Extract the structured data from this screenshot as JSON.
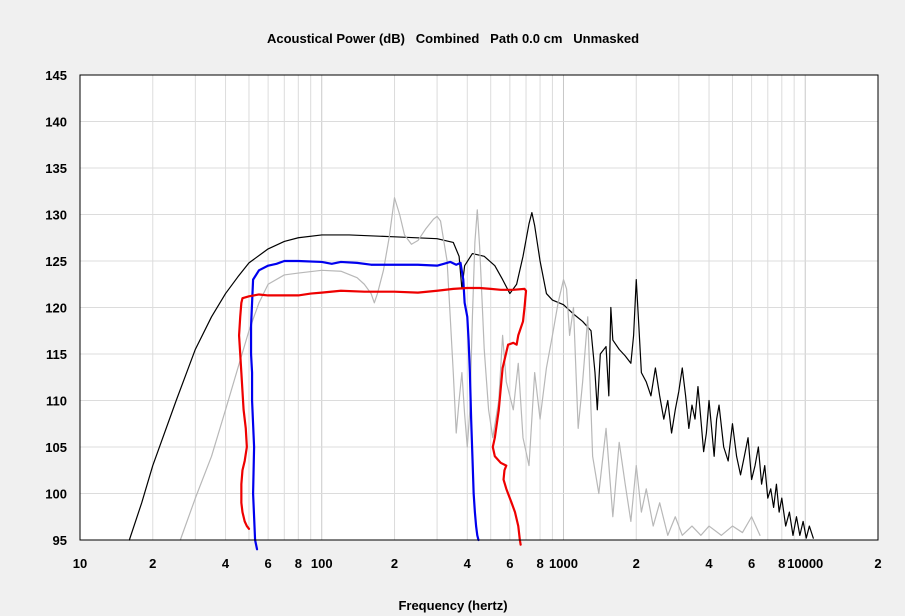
{
  "chart_data": {
    "type": "line",
    "title": "Acoustical Power (dB)   Combined   Path 0.0 cm   Unmasked",
    "xlabel": "Frequency (hertz)",
    "ylabel": "",
    "x_scale": "log",
    "xlim": [
      10,
      20000
    ],
    "ylim": [
      95,
      145
    ],
    "grid": true,
    "legend": "none",
    "y_ticks": [
      "145",
      "140",
      "135",
      "130",
      "125",
      "120",
      "115",
      "110",
      "105",
      "100",
      "95"
    ],
    "x_ticks": [
      {
        "value": 10,
        "label": "10"
      },
      {
        "value": 20,
        "label": "2"
      },
      {
        "value": 40,
        "label": "4"
      },
      {
        "value": 60,
        "label": "6"
      },
      {
        "value": 80,
        "label": "8"
      },
      {
        "value": 100,
        "label": "100"
      },
      {
        "value": 200,
        "label": "2"
      },
      {
        "value": 400,
        "label": "4"
      },
      {
        "value": 600,
        "label": "6"
      },
      {
        "value": 800,
        "label": "8"
      },
      {
        "value": 1000,
        "label": "1000"
      },
      {
        "value": 2000,
        "label": "2"
      },
      {
        "value": 4000,
        "label": "4"
      },
      {
        "value": 6000,
        "label": "6"
      },
      {
        "value": 8000,
        "label": "8"
      },
      {
        "value": 10000,
        "label": "10000"
      },
      {
        "value": 20000,
        "label": "2"
      }
    ],
    "series": [
      {
        "color": "#000000",
        "points": [
          [
            16,
            95
          ],
          [
            18,
            99
          ],
          [
            20,
            103
          ],
          [
            25,
            110
          ],
          [
            30,
            115.5
          ],
          [
            35,
            119
          ],
          [
            40,
            121.5
          ],
          [
            45,
            123.3
          ],
          [
            50,
            124.8
          ],
          [
            60,
            126.3
          ],
          [
            70,
            127.1
          ],
          [
            80,
            127.5
          ],
          [
            100,
            127.8
          ],
          [
            130,
            127.8
          ],
          [
            200,
            127.6
          ],
          [
            300,
            127.4
          ],
          [
            350,
            127
          ],
          [
            370,
            125.5
          ],
          [
            380,
            122
          ],
          [
            390,
            124.5
          ],
          [
            420,
            125.8
          ],
          [
            470,
            125.5
          ],
          [
            520,
            124.5
          ],
          [
            560,
            123
          ],
          [
            600,
            121.5
          ],
          [
            640,
            122.5
          ],
          [
            680,
            125.5
          ],
          [
            720,
            129
          ],
          [
            740,
            130.2
          ],
          [
            760,
            128.8
          ],
          [
            800,
            125
          ],
          [
            850,
            121.5
          ],
          [
            900,
            120.8
          ],
          [
            1000,
            120.3
          ],
          [
            1100,
            119.3
          ],
          [
            1200,
            118.5
          ],
          [
            1300,
            117.5
          ],
          [
            1350,
            113
          ],
          [
            1380,
            109
          ],
          [
            1420,
            115
          ],
          [
            1500,
            115.8
          ],
          [
            1540,
            110.5
          ],
          [
            1570,
            120
          ],
          [
            1600,
            116.5
          ],
          [
            1700,
            115.5
          ],
          [
            1800,
            114.8
          ],
          [
            1900,
            114
          ],
          [
            1950,
            117
          ],
          [
            2000,
            123
          ],
          [
            2050,
            118
          ],
          [
            2100,
            113
          ],
          [
            2200,
            112
          ],
          [
            2300,
            110.5
          ],
          [
            2400,
            113.5
          ],
          [
            2500,
            110.5
          ],
          [
            2600,
            108
          ],
          [
            2700,
            110
          ],
          [
            2800,
            106.5
          ],
          [
            2900,
            109
          ],
          [
            3000,
            111
          ],
          [
            3100,
            113.5
          ],
          [
            3200,
            110.5
          ],
          [
            3300,
            107
          ],
          [
            3400,
            109.5
          ],
          [
            3500,
            108
          ],
          [
            3600,
            111.5
          ],
          [
            3700,
            108
          ],
          [
            3800,
            104.5
          ],
          [
            3900,
            106.5
          ],
          [
            4000,
            110
          ],
          [
            4100,
            107
          ],
          [
            4200,
            104
          ],
          [
            4300,
            108
          ],
          [
            4400,
            109.5
          ],
          [
            4600,
            105
          ],
          [
            4800,
            103.5
          ],
          [
            5000,
            107.5
          ],
          [
            5200,
            104
          ],
          [
            5400,
            102
          ],
          [
            5600,
            104
          ],
          [
            5800,
            106
          ],
          [
            6000,
            101.5
          ],
          [
            6200,
            103
          ],
          [
            6400,
            105
          ],
          [
            6600,
            101
          ],
          [
            6800,
            103
          ],
          [
            7000,
            99.5
          ],
          [
            7200,
            100.5
          ],
          [
            7400,
            98.5
          ],
          [
            7600,
            101
          ],
          [
            7800,
            98
          ],
          [
            8000,
            99.5
          ],
          [
            8300,
            96.5
          ],
          [
            8600,
            98
          ],
          [
            8900,
            95.5
          ],
          [
            9200,
            97.5
          ],
          [
            9500,
            95.5
          ],
          [
            9800,
            97
          ],
          [
            10100,
            95.2
          ],
          [
            10400,
            96.5
          ],
          [
            10800,
            95.2
          ]
        ]
      },
      {
        "color": "#b8b8b8",
        "points": [
          [
            26,
            95
          ],
          [
            30,
            99.5
          ],
          [
            35,
            104
          ],
          [
            40,
            109
          ],
          [
            45,
            113.5
          ],
          [
            50,
            117.5
          ],
          [
            55,
            120.5
          ],
          [
            60,
            122.5
          ],
          [
            70,
            123.5
          ],
          [
            80,
            123.7
          ],
          [
            100,
            124
          ],
          [
            120,
            123.9
          ],
          [
            140,
            123.2
          ],
          [
            150,
            122.5
          ],
          [
            160,
            121.5
          ],
          [
            165,
            120.5
          ],
          [
            170,
            121.5
          ],
          [
            180,
            124
          ],
          [
            190,
            127.5
          ],
          [
            200,
            131.8
          ],
          [
            210,
            130
          ],
          [
            220,
            127.8
          ],
          [
            235,
            126.8
          ],
          [
            250,
            127.2
          ],
          [
            270,
            128.5
          ],
          [
            290,
            129.5
          ],
          [
            300,
            129.8
          ],
          [
            310,
            129.3
          ],
          [
            330,
            125
          ],
          [
            340,
            119
          ],
          [
            350,
            113
          ],
          [
            360,
            106.5
          ],
          [
            370,
            110
          ],
          [
            380,
            113
          ],
          [
            390,
            108.5
          ],
          [
            400,
            105
          ],
          [
            410,
            109
          ],
          [
            420,
            119
          ],
          [
            430,
            127
          ],
          [
            440,
            130.5
          ],
          [
            450,
            126.5
          ],
          [
            460,
            121
          ],
          [
            470,
            115.5
          ],
          [
            490,
            109
          ],
          [
            510,
            106
          ],
          [
            540,
            110
          ],
          [
            560,
            117
          ],
          [
            580,
            112
          ],
          [
            620,
            109
          ],
          [
            650,
            114
          ],
          [
            680,
            106
          ],
          [
            720,
            103
          ],
          [
            760,
            113
          ],
          [
            800,
            108
          ],
          [
            850,
            113.5
          ],
          [
            900,
            117
          ],
          [
            950,
            120.5
          ],
          [
            1000,
            123
          ],
          [
            1030,
            122
          ],
          [
            1060,
            117
          ],
          [
            1100,
            120
          ],
          [
            1150,
            107
          ],
          [
            1200,
            112
          ],
          [
            1260,
            119
          ],
          [
            1320,
            104
          ],
          [
            1400,
            100
          ],
          [
            1500,
            107
          ],
          [
            1600,
            97.5
          ],
          [
            1700,
            105.5
          ],
          [
            1800,
            101
          ],
          [
            1900,
            97
          ],
          [
            2000,
            103
          ],
          [
            2100,
            98
          ],
          [
            2200,
            100.5
          ],
          [
            2350,
            96.5
          ],
          [
            2500,
            99
          ],
          [
            2700,
            95.5
          ],
          [
            2900,
            97.5
          ],
          [
            3100,
            95.5
          ],
          [
            3400,
            96.5
          ],
          [
            3700,
            95.5
          ],
          [
            4000,
            96.5
          ],
          [
            4500,
            95.5
          ],
          [
            5000,
            96.5
          ],
          [
            5500,
            95.8
          ],
          [
            6000,
            97.5
          ],
          [
            6500,
            95.5
          ]
        ]
      },
      {
        "color": "#0000ee",
        "points": [
          [
            54,
            94
          ],
          [
            53,
            95
          ],
          [
            52,
            100
          ],
          [
            52.5,
            105
          ],
          [
            51.5,
            110
          ],
          [
            51.5,
            113
          ],
          [
            51,
            115
          ],
          [
            51,
            118
          ],
          [
            52,
            123
          ],
          [
            55,
            124
          ],
          [
            60,
            124.5
          ],
          [
            65,
            124.7
          ],
          [
            70,
            125
          ],
          [
            80,
            125
          ],
          [
            100,
            124.9
          ],
          [
            110,
            124.7
          ],
          [
            120,
            124.9
          ],
          [
            140,
            124.8
          ],
          [
            160,
            124.6
          ],
          [
            200,
            124.6
          ],
          [
            250,
            124.6
          ],
          [
            300,
            124.5
          ],
          [
            320,
            124.7
          ],
          [
            340,
            124.9
          ],
          [
            360,
            124.6
          ],
          [
            375,
            124.8
          ],
          [
            385,
            123
          ],
          [
            390,
            120.5
          ],
          [
            400,
            119
          ],
          [
            405,
            116.5
          ],
          [
            410,
            113
          ],
          [
            415,
            108
          ],
          [
            420,
            104
          ],
          [
            425,
            100
          ],
          [
            430,
            98
          ],
          [
            435,
            96.5
          ],
          [
            440,
            95.5
          ],
          [
            445,
            95
          ]
        ]
      },
      {
        "color": "#ee0000",
        "points": [
          [
            50,
            96.2
          ],
          [
            49,
            96.5
          ],
          [
            48,
            97
          ],
          [
            47,
            98
          ],
          [
            46.5,
            99
          ],
          [
            46.5,
            101
          ],
          [
            47,
            102.5
          ],
          [
            48,
            103.5
          ],
          [
            49,
            105
          ],
          [
            48.5,
            107
          ],
          [
            47.5,
            109
          ],
          [
            47,
            111
          ],
          [
            46.5,
            113
          ],
          [
            46,
            115
          ],
          [
            45.5,
            117
          ],
          [
            46,
            119
          ],
          [
            46.5,
            120.5
          ],
          [
            47,
            121
          ],
          [
            50,
            121.2
          ],
          [
            55,
            121.4
          ],
          [
            60,
            121.3
          ],
          [
            70,
            121.3
          ],
          [
            80,
            121.3
          ],
          [
            90,
            121.5
          ],
          [
            100,
            121.6
          ],
          [
            120,
            121.8
          ],
          [
            150,
            121.7
          ],
          [
            200,
            121.7
          ],
          [
            250,
            121.6
          ],
          [
            300,
            121.8
          ],
          [
            350,
            122
          ],
          [
            400,
            122.1
          ],
          [
            450,
            122.1
          ],
          [
            500,
            122
          ],
          [
            550,
            121.9
          ],
          [
            620,
            121.9
          ],
          [
            690,
            122
          ],
          [
            700,
            121.8
          ],
          [
            690,
            120
          ],
          [
            680,
            118.5
          ],
          [
            650,
            117
          ],
          [
            640,
            116
          ],
          [
            620,
            116.2
          ],
          [
            590,
            116
          ],
          [
            560,
            113.5
          ],
          [
            540,
            109
          ],
          [
            520,
            106
          ],
          [
            510,
            105
          ],
          [
            520,
            104
          ],
          [
            550,
            103.3
          ],
          [
            580,
            103
          ],
          [
            570,
            102.5
          ],
          [
            565,
            101.5
          ],
          [
            580,
            100.5
          ],
          [
            610,
            99
          ],
          [
            630,
            98
          ],
          [
            650,
            96.5
          ],
          [
            660,
            95
          ],
          [
            665,
            94.5
          ]
        ]
      }
    ]
  }
}
